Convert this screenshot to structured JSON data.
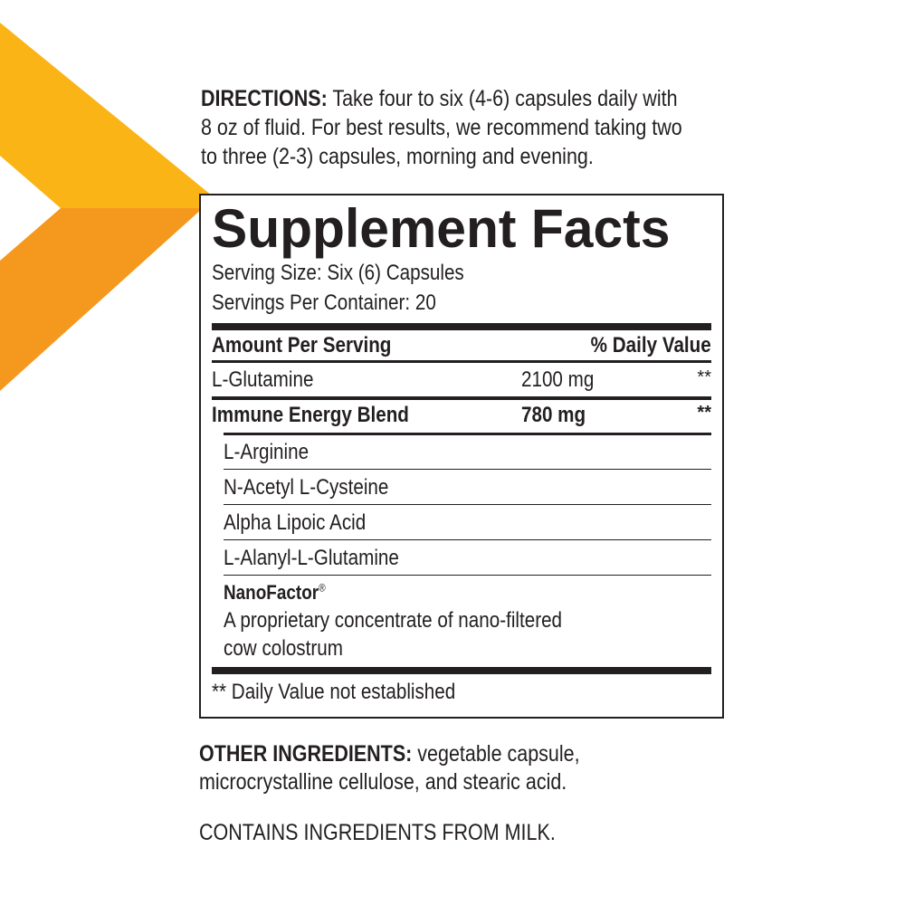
{
  "colors": {
    "chevron_top": "#FBB416",
    "chevron_bottom": "#F5991E",
    "text": "#231f20"
  },
  "directions": {
    "label": "DIRECTIONS:",
    "lines": [
      "Take four to six (4-6) capsules daily with",
      "8 oz of fluid. For best results, we recommend taking two",
      "to three (2-3) capsules, morning and evening."
    ]
  },
  "facts": {
    "title": "Supplement Facts",
    "serving_size": "Serving Size: Six (6) Capsules",
    "servings_per_container": "Servings Per Container: 20",
    "header_amount": "Amount Per Serving",
    "header_dv": "% Daily Value",
    "rows": [
      {
        "name": "L-Glutamine",
        "amount": "2100 mg",
        "dv": "**"
      },
      {
        "name": "Immune Energy Blend",
        "amount": "780 mg",
        "dv": "**"
      }
    ],
    "blend": [
      "L-Arginine",
      "N-Acetyl L-Cysteine",
      "Alpha Lipoic Acid",
      "L-Alanyl-L-Glutamine"
    ],
    "nano_name": "NanoFactor",
    "nano_mark": "®",
    "nano_desc": [
      "A proprietary concentrate of nano-filtered",
      "cow colostrum"
    ],
    "footnote": "** Daily Value not established"
  },
  "other": {
    "label": "OTHER INGREDIENTS:",
    "lines": [
      "vegetable capsule,",
      "microcrystalline cellulose, and stearic acid."
    ]
  },
  "allergen": "CONTAINS INGREDIENTS FROM MILK."
}
